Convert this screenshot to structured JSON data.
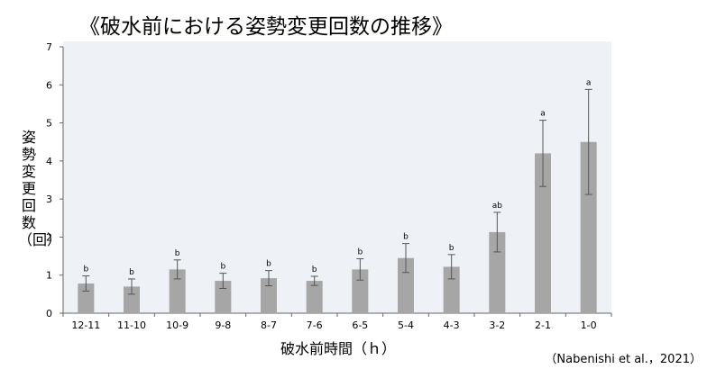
{
  "chart_data": {
    "type": "bar",
    "title": "《破水前における姿勢変更回数の推移》",
    "xlabel": "破水前時間（ｈ）",
    "ylabel": "姿勢変更回数（回）",
    "citation": "（Nabenishi et al.，2021）",
    "ylim": [
      0,
      7
    ],
    "yticks": [
      "0",
      "1",
      "2",
      "3",
      "4",
      "5",
      "6",
      "7"
    ],
    "grid": false,
    "categories": [
      "12-11",
      "11-10",
      "10-9",
      "9-8",
      "8-7",
      "7-6",
      "6-5",
      "5-4",
      "4-3",
      "3-2",
      "2-1",
      "1-0"
    ],
    "values": [
      0.78,
      0.7,
      1.15,
      0.85,
      0.92,
      0.85,
      1.15,
      1.45,
      1.22,
      2.13,
      4.2,
      4.5
    ],
    "error": [
      0.2,
      0.2,
      0.25,
      0.2,
      0.2,
      0.12,
      0.28,
      0.38,
      0.32,
      0.52,
      0.87,
      1.38
    ],
    "significance": [
      "b",
      "b",
      "b",
      "b",
      "b",
      "b",
      "b",
      "b",
      "b",
      "ab",
      "a",
      "a"
    ],
    "colors": {
      "plot_background": "#eef2f7",
      "bar": "#a6a6a6",
      "axis": "#666666"
    }
  }
}
